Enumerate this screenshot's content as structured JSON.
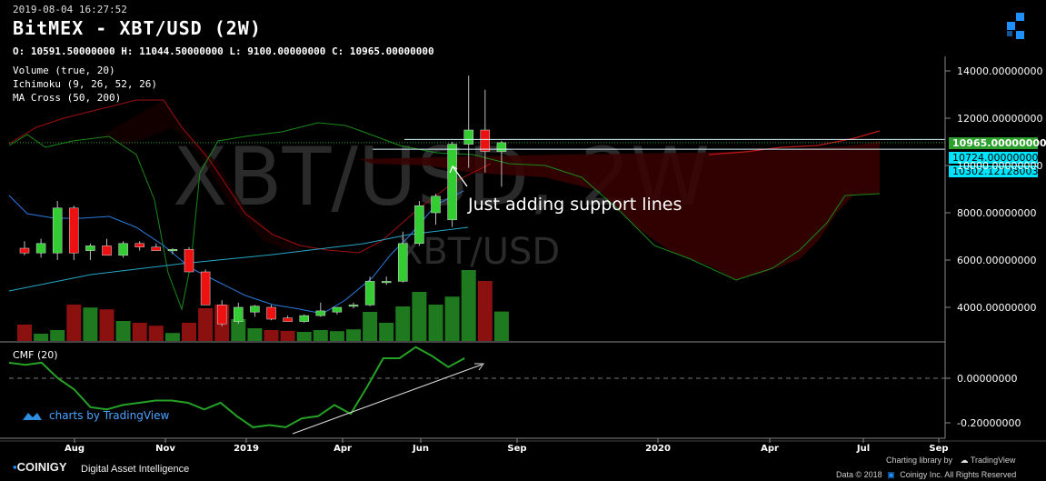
{
  "header": {
    "timestamp": "2019-08-04 16:27:52",
    "title": "BitMEX - XBT/USD (2W)",
    "ohlc": "O: 10591.50000000 H: 11044.50000000 L: 9100.00000000 C: 10965.00000000"
  },
  "indicators": [
    "Volume (true, 20)",
    "Ichimoku (9, 26, 52, 26)",
    "MA Cross (50, 200)"
  ],
  "watermark": {
    "main": "XBT/USD, 2W",
    "sub": "XBT/USD"
  },
  "tv_badge": "charts by TradingView",
  "annotation": "Just adding support lines",
  "footer": {
    "brand": "COINIGY",
    "tagline": "Digital Asset Intelligence",
    "charting_library": "Charting library by",
    "tv_name": "TradingView",
    "data_line": "Data © 2018",
    "coinigy_line": "Coinigy Inc. All Rights Reserved"
  },
  "colors": {
    "up": "#33cc33",
    "down": "#ee1111",
    "bg": "#000000",
    "price_label": "#2ca02c",
    "support_label": "#00e5ff"
  },
  "chart_data": [
    {
      "type": "candlestick",
      "title": "BitMEX - XBT/USD (2W)",
      "x_tick_labels": [
        "Aug",
        "Nov",
        "2019",
        "Apr",
        "Jun",
        "Sep",
        "2020",
        "Apr",
        "Jul",
        "Sep"
      ],
      "y_tick_labels": [
        "14000.00000000",
        "12000.00000000",
        "10000.00000000",
        "8000.00000000",
        "6000.00000000",
        "4000.00000000"
      ],
      "ylim": [
        3000,
        14500
      ],
      "price_labels": {
        "last": "10965.00000000",
        "support_1": "10724.00000000",
        "support_2": "10302.12128003"
      },
      "support_levels": [
        10724,
        10302.12
      ],
      "candles": [
        {
          "o": 6500,
          "h": 6800,
          "l": 6200,
          "c": 6300
        },
        {
          "o": 6300,
          "h": 6900,
          "l": 6100,
          "c": 6700
        },
        {
          "o": 6300,
          "h": 8500,
          "l": 6000,
          "c": 8200
        },
        {
          "o": 8200,
          "h": 8300,
          "l": 6000,
          "c": 6300
        },
        {
          "o": 6400,
          "h": 6700,
          "l": 6000,
          "c": 6600
        },
        {
          "o": 6600,
          "h": 6900,
          "l": 6200,
          "c": 6200
        },
        {
          "o": 6200,
          "h": 6800,
          "l": 6100,
          "c": 6700
        },
        {
          "o": 6700,
          "h": 6800,
          "l": 6400,
          "c": 6550
        },
        {
          "o": 6550,
          "h": 6700,
          "l": 6400,
          "c": 6400
        },
        {
          "o": 6400,
          "h": 6500,
          "l": 6250,
          "c": 6450
        },
        {
          "o": 6450,
          "h": 6550,
          "l": 5500,
          "c": 5500
        },
        {
          "o": 5500,
          "h": 5600,
          "l": 4100,
          "c": 4100
        },
        {
          "o": 4100,
          "h": 4300,
          "l": 3200,
          "c": 3300
        },
        {
          "o": 3400,
          "h": 4200,
          "l": 3300,
          "c": 4000
        },
        {
          "o": 3800,
          "h": 4100,
          "l": 3600,
          "c": 4050
        },
        {
          "o": 4000,
          "h": 4100,
          "l": 3450,
          "c": 3500
        },
        {
          "o": 3550,
          "h": 3650,
          "l": 3400,
          "c": 3400
        },
        {
          "o": 3400,
          "h": 3700,
          "l": 3350,
          "c": 3650
        },
        {
          "o": 3650,
          "h": 4200,
          "l": 3600,
          "c": 3850
        },
        {
          "o": 3800,
          "h": 4000,
          "l": 3700,
          "c": 4000
        },
        {
          "o": 4050,
          "h": 4200,
          "l": 3950,
          "c": 4100
        },
        {
          "o": 4100,
          "h": 5300,
          "l": 4050,
          "c": 5100
        },
        {
          "o": 5100,
          "h": 5300,
          "l": 4950,
          "c": 5100
        },
        {
          "o": 5100,
          "h": 7200,
          "l": 5050,
          "c": 6700
        },
        {
          "o": 6700,
          "h": 8500,
          "l": 6600,
          "c": 8300
        },
        {
          "o": 8000,
          "h": 8800,
          "l": 7500,
          "c": 8700
        },
        {
          "o": 7700,
          "h": 11000,
          "l": 7400,
          "c": 10900
        },
        {
          "o": 10900,
          "h": 13800,
          "l": 9900,
          "c": 11500
        },
        {
          "o": 11500,
          "h": 13200,
          "l": 9700,
          "c": 10600
        },
        {
          "o": 10591.5,
          "h": 11044.5,
          "l": 9100,
          "c": 10965
        }
      ],
      "volume_bars": [
        0.45,
        0.2,
        0.3,
        1.0,
        0.92,
        0.87,
        0.55,
        0.5,
        0.42,
        0.22,
        0.5,
        0.9,
        1.0,
        0.6,
        0.35,
        0.3,
        0.28,
        0.25,
        0.3,
        0.27,
        0.32,
        0.8,
        0.5,
        0.95,
        1.35,
        1.0,
        1.22,
        1.95,
        1.65,
        0.81
      ]
    },
    {
      "type": "line",
      "title": "CMF (20)",
      "y_tick_labels": [
        "0.00000000",
        "-0.20000000"
      ],
      "ylim": [
        -0.25,
        0.15
      ],
      "values": [
        0.07,
        0.06,
        0.07,
        0.0,
        -0.05,
        -0.13,
        -0.14,
        -0.12,
        -0.11,
        -0.1,
        -0.1,
        -0.11,
        -0.14,
        -0.11,
        -0.17,
        -0.22,
        -0.21,
        -0.22,
        -0.18,
        -0.17,
        -0.12,
        -0.16,
        -0.04,
        0.09,
        0.09,
        0.14,
        0.1,
        0.05,
        0.09
      ]
    }
  ]
}
